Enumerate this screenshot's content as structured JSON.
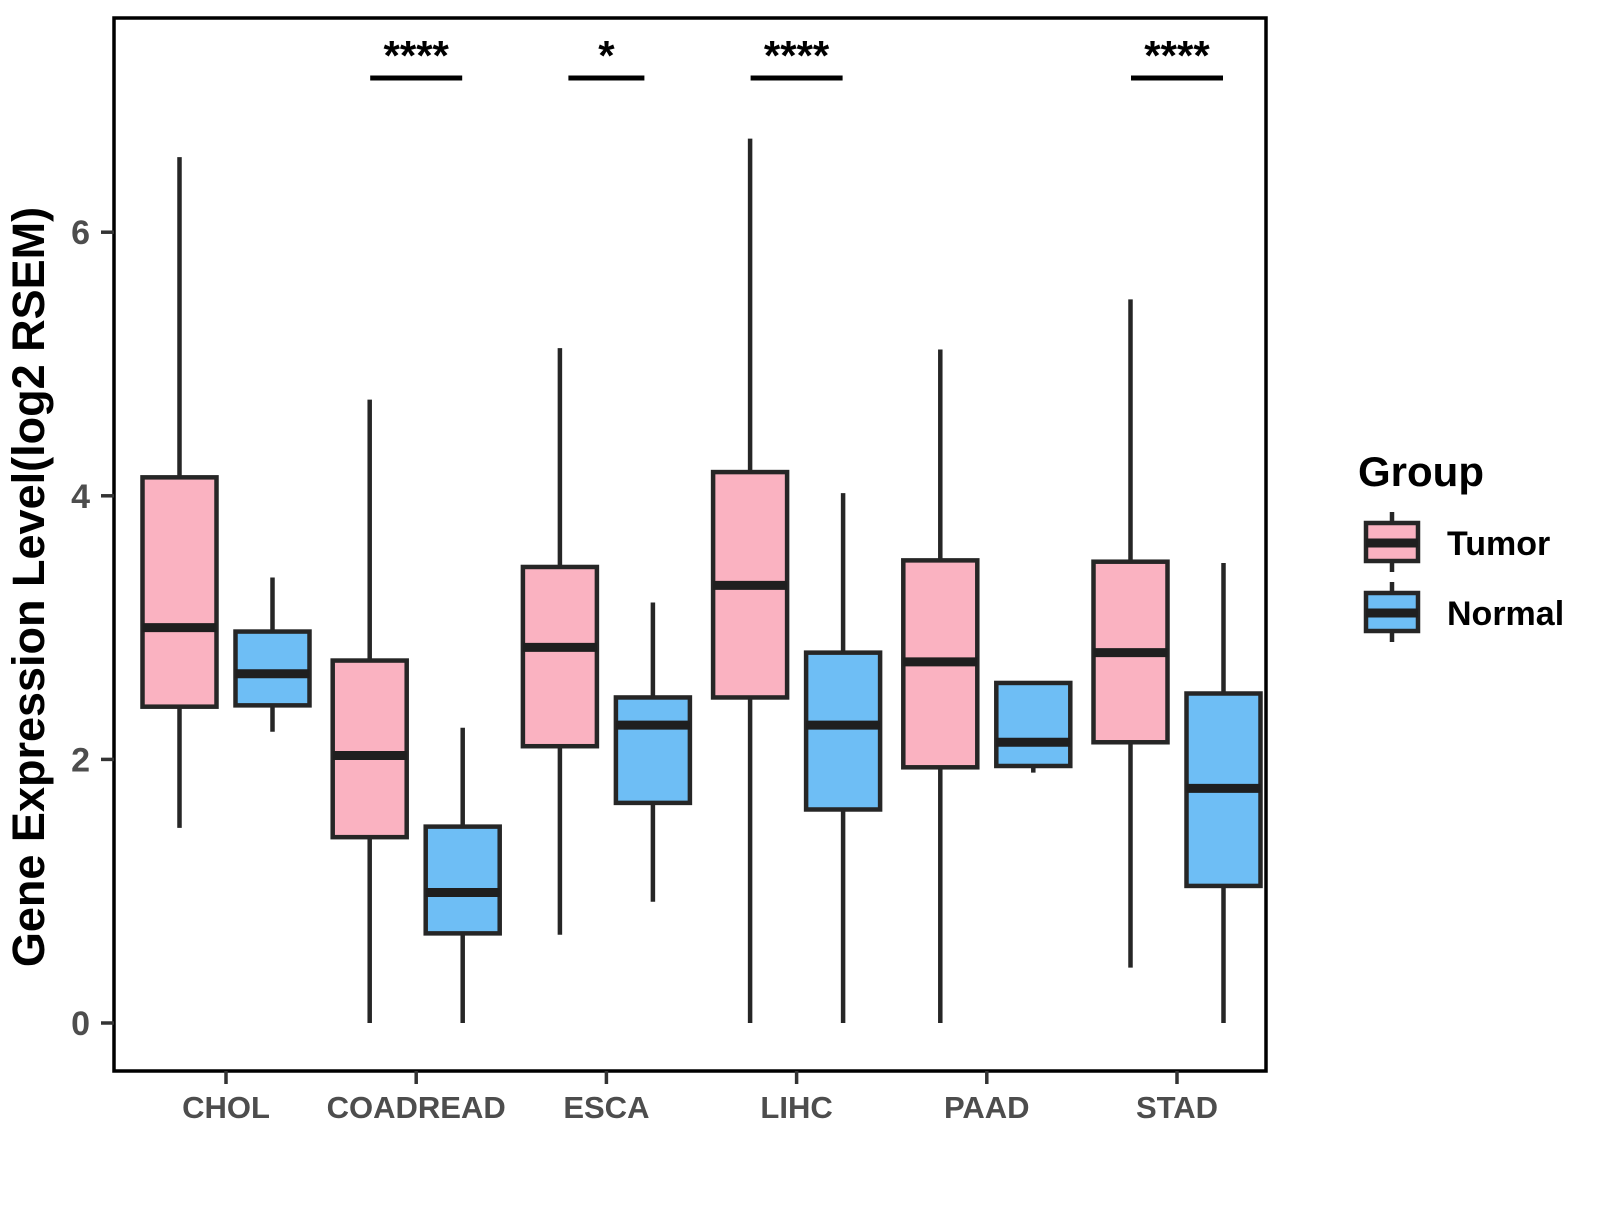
{
  "figure": {
    "background": "#ffffff",
    "panel_border_color": "#000000"
  },
  "chart_data": {
    "type": "boxplot",
    "title": "",
    "xlabel": "",
    "ylabel": "Gene Expression Level(log2 RSEM)",
    "categories": [
      "CHOL",
      "COADREAD",
      "ESCA",
      "LIHC",
      "PAAD",
      "STAD"
    ],
    "y_ticks": [
      "0",
      "2",
      "4",
      "6"
    ],
    "y_tick_values": [
      0,
      2,
      4,
      6
    ],
    "ylim": [
      -0.36,
      7.63
    ],
    "grid": false,
    "legend": {
      "title": "Group",
      "position": "right"
    },
    "series": [
      {
        "name": "Tumor",
        "fill": "#FAB2C1",
        "stroke": "#262626",
        "boxes": [
          {
            "category": "CHOL",
            "whisker_low": 1.48,
            "q1": 2.4,
            "median": 3.0,
            "q3": 4.14,
            "whisker_high": 6.57
          },
          {
            "category": "COADREAD",
            "whisker_low": 0.0,
            "q1": 1.41,
            "median": 2.03,
            "q3": 2.75,
            "whisker_high": 4.73
          },
          {
            "category": "ESCA",
            "whisker_low": 0.67,
            "q1": 2.1,
            "median": 2.85,
            "q3": 3.46,
            "whisker_high": 5.12
          },
          {
            "category": "LIHC",
            "whisker_low": 0.0,
            "q1": 2.47,
            "median": 3.32,
            "q3": 4.18,
            "whisker_high": 6.71
          },
          {
            "category": "PAAD",
            "whisker_low": 0.0,
            "q1": 1.94,
            "median": 2.74,
            "q3": 3.51,
            "whisker_high": 5.11
          },
          {
            "category": "STAD",
            "whisker_low": 0.42,
            "q1": 2.13,
            "median": 2.81,
            "q3": 3.5,
            "whisker_high": 5.49
          }
        ]
      },
      {
        "name": "Normal",
        "fill": "#6EBEF5",
        "stroke": "#262626",
        "boxes": [
          {
            "category": "CHOL",
            "whisker_low": 2.21,
            "q1": 2.41,
            "median": 2.65,
            "q3": 2.97,
            "whisker_high": 3.38
          },
          {
            "category": "COADREAD",
            "whisker_low": 0.0,
            "q1": 0.68,
            "median": 0.99,
            "q3": 1.49,
            "whisker_high": 2.24
          },
          {
            "category": "ESCA",
            "whisker_low": 0.92,
            "q1": 1.67,
            "median": 2.26,
            "q3": 2.47,
            "whisker_high": 3.19
          },
          {
            "category": "LIHC",
            "whisker_low": 0.0,
            "q1": 1.62,
            "median": 2.26,
            "q3": 2.81,
            "whisker_high": 4.02
          },
          {
            "category": "PAAD",
            "whisker_low": 1.9,
            "q1": 1.95,
            "median": 2.13,
            "q3": 2.58,
            "whisker_high": 2.58
          },
          {
            "category": "STAD",
            "whisker_low": 0.0,
            "q1": 1.04,
            "median": 1.78,
            "q3": 2.5,
            "whisker_high": 3.49
          }
        ]
      }
    ],
    "significance": [
      {
        "category": "COADREAD",
        "label": "****"
      },
      {
        "category": "ESCA",
        "label": "*"
      },
      {
        "category": "LIHC",
        "label": "****"
      },
      {
        "category": "STAD",
        "label": "****"
      }
    ]
  }
}
